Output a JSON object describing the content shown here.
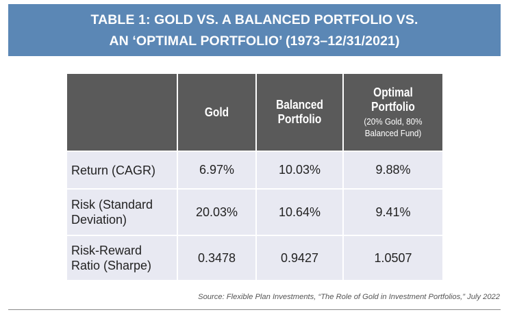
{
  "title": {
    "line1": "TABLE 1: GOLD VS. A BALANCED PORTFOLIO VS.",
    "line2": "AN ‘OPTIMAL PORTFOLIO’ (1973–12/31/2021)"
  },
  "table": {
    "headers": {
      "col0": "",
      "col1": "Gold",
      "col2_line1": "Balanced",
      "col2_line2": "Portfolio",
      "col3_line1": "Optimal",
      "col3_line2": "Portfolio",
      "col3_sub1": "(20% Gold, 80%",
      "col3_sub2": "Balanced Fund)"
    },
    "rows": [
      {
        "label_line1": "Return (CAGR)",
        "label_line2": "",
        "gold": "6.97%",
        "balanced": "10.03%",
        "optimal": "9.88%"
      },
      {
        "label_line1": "Risk (Standard",
        "label_line2": "Deviation)",
        "gold": "20.03%",
        "balanced": "10.64%",
        "optimal": "9.41%"
      },
      {
        "label_line1": "Risk-Reward",
        "label_line2": "Ratio (Sharpe)",
        "gold": "0.3478",
        "balanced": "0.9427",
        "optimal": "1.0507"
      }
    ]
  },
  "source": "Source: Flexible Plan Investments, “The Role of Gold in Investment Portfolios,” July 2022",
  "colors": {
    "banner": "#5b87b5",
    "header_bg": "#5a5a5a",
    "cell_bg": "#e8e9f2"
  }
}
